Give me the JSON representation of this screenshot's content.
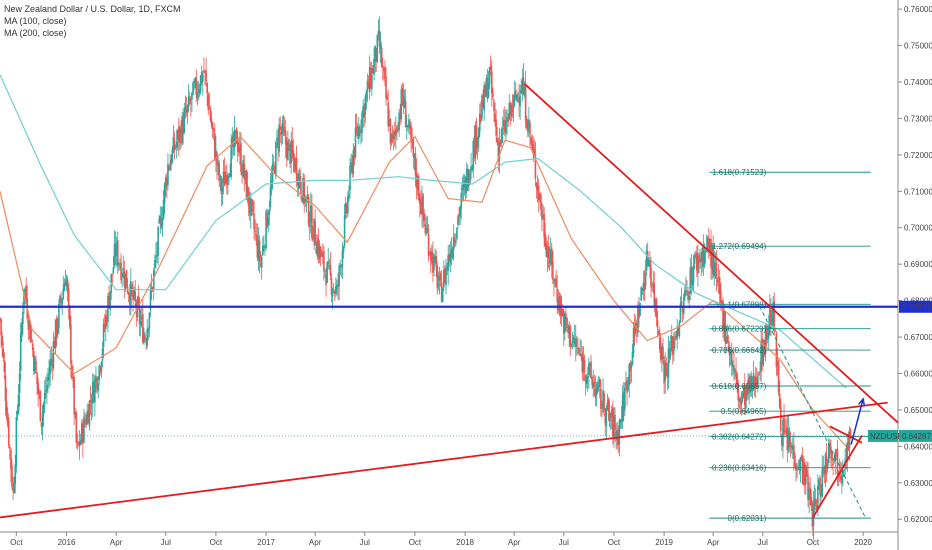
{
  "legend": {
    "title": "New Zealand Dollar / U.S. Dollar, 1D, FXCM",
    "ma100": "MA (100, close)",
    "ma200": "MA (200, close)"
  },
  "colors": {
    "up": "#26a69a",
    "down": "#ef5350",
    "ma100": "#f08a5d",
    "ma200": "#6fd0d0",
    "trend": "#e41a1c",
    "blue": "#1f2fd6",
    "fib": "#1a8f84",
    "price_badge": "#26a69a"
  },
  "chart_data": {
    "type": "candlestick",
    "title": "New Zealand Dollar / U.S. Dollar, 1D, FXCM",
    "x_range": [
      "2015-09-01",
      "2020-03-05"
    ],
    "ylim": [
      0.6165,
      0.7625
    ],
    "y_ticks": [
      0.62,
      0.63,
      0.64,
      0.65,
      0.66,
      0.67,
      0.68,
      0.69,
      0.7,
      0.71,
      0.72,
      0.73,
      0.74,
      0.75,
      0.76
    ],
    "x_ticks": [
      {
        "label": "Oct",
        "date": "2015-10-01"
      },
      {
        "label": "2016",
        "date": "2016-01-01"
      },
      {
        "label": "Apr",
        "date": "2016-04-01"
      },
      {
        "label": "Jul",
        "date": "2016-07-01"
      },
      {
        "label": "Oct",
        "date": "2016-10-01"
      },
      {
        "label": "2017",
        "date": "2017-01-01"
      },
      {
        "label": "Apr",
        "date": "2017-04-01"
      },
      {
        "label": "Jul",
        "date": "2017-07-01"
      },
      {
        "label": "Oct",
        "date": "2017-10-01"
      },
      {
        "label": "2018",
        "date": "2018-01-01"
      },
      {
        "label": "Apr",
        "date": "2018-04-01"
      },
      {
        "label": "Jul",
        "date": "2018-07-01"
      },
      {
        "label": "Oct",
        "date": "2018-10-01"
      },
      {
        "label": "2019",
        "date": "2019-01-01"
      },
      {
        "label": "Apr",
        "date": "2019-04-01"
      },
      {
        "label": "Jul",
        "date": "2019-07-01"
      },
      {
        "label": "Oct",
        "date": "2019-10-01"
      },
      {
        "label": "2020",
        "date": "2020-01-01"
      }
    ],
    "price_path": [
      [
        "2015-09-01",
        0.675
      ],
      [
        "2015-09-25",
        0.627
      ],
      [
        "2015-10-15",
        0.685
      ],
      [
        "2015-11-16",
        0.648
      ],
      [
        "2015-12-31",
        0.688
      ],
      [
        "2016-01-20",
        0.638
      ],
      [
        "2016-03-01",
        0.662
      ],
      [
        "2016-03-31",
        0.694
      ],
      [
        "2016-05-25",
        0.67
      ],
      [
        "2016-07-05",
        0.717
      ],
      [
        "2016-08-20",
        0.736
      ],
      [
        "2016-09-09",
        0.743
      ],
      [
        "2016-10-10",
        0.71
      ],
      [
        "2016-11-08",
        0.725
      ],
      [
        "2016-12-22",
        0.69
      ],
      [
        "2017-01-25",
        0.727
      ],
      [
        "2017-02-25",
        0.717
      ],
      [
        "2017-04-15",
        0.69
      ],
      [
        "2017-05-11",
        0.682
      ],
      [
        "2017-06-10",
        0.721
      ],
      [
        "2017-07-27",
        0.751
      ],
      [
        "2017-08-20",
        0.722
      ],
      [
        "2017-09-08",
        0.736
      ],
      [
        "2017-10-20",
        0.7
      ],
      [
        "2017-11-17",
        0.682
      ],
      [
        "2017-12-31",
        0.711
      ],
      [
        "2018-02-15",
        0.742
      ],
      [
        "2018-03-02",
        0.722
      ],
      [
        "2018-04-15",
        0.74
      ],
      [
        "2018-05-31",
        0.695
      ],
      [
        "2018-07-01",
        0.674
      ],
      [
        "2018-08-15",
        0.66
      ],
      [
        "2018-10-08",
        0.643
      ],
      [
        "2018-12-03",
        0.693
      ],
      [
        "2019-01-02",
        0.66
      ],
      [
        "2019-02-25",
        0.69
      ],
      [
        "2019-03-25",
        0.695
      ],
      [
        "2019-05-20",
        0.652
      ],
      [
        "2019-06-15",
        0.657
      ],
      [
        "2019-07-19",
        0.678
      ],
      [
        "2019-08-05",
        0.644
      ],
      [
        "2019-09-15",
        0.633
      ],
      [
        "2019-10-01",
        0.621
      ],
      [
        "2019-11-01",
        0.641
      ],
      [
        "2019-11-20",
        0.634
      ],
      [
        "2019-12-03",
        0.64
      ],
      [
        "2019-12-10",
        0.6429
      ]
    ],
    "ma100_path": [
      [
        "2015-09-01",
        0.71
      ],
      [
        "2015-10-30",
        0.672
      ],
      [
        "2016-01-15",
        0.66
      ],
      [
        "2016-04-01",
        0.667
      ],
      [
        "2016-06-15",
        0.688
      ],
      [
        "2016-09-15",
        0.717
      ],
      [
        "2016-11-15",
        0.725
      ],
      [
        "2017-01-15",
        0.715
      ],
      [
        "2017-04-01",
        0.706
      ],
      [
        "2017-05-30",
        0.696
      ],
      [
        "2017-08-15",
        0.718
      ],
      [
        "2017-10-01",
        0.725
      ],
      [
        "2017-12-01",
        0.708
      ],
      [
        "2018-02-01",
        0.707
      ],
      [
        "2018-03-15",
        0.724
      ],
      [
        "2018-05-01",
        0.722
      ],
      [
        "2018-07-15",
        0.697
      ],
      [
        "2018-10-01",
        0.68
      ],
      [
        "2018-12-01",
        0.669
      ],
      [
        "2019-02-01",
        0.673
      ],
      [
        "2019-04-01",
        0.68
      ],
      [
        "2019-06-01",
        0.672
      ],
      [
        "2019-08-01",
        0.664
      ],
      [
        "2019-10-01",
        0.65
      ],
      [
        "2019-12-01",
        0.64
      ]
    ],
    "ma200_path": [
      [
        "2015-09-01",
        0.742
      ],
      [
        "2015-11-15",
        0.717
      ],
      [
        "2016-01-15",
        0.698
      ],
      [
        "2016-04-01",
        0.683
      ],
      [
        "2016-07-01",
        0.683
      ],
      [
        "2016-10-01",
        0.702
      ],
      [
        "2017-01-01",
        0.712
      ],
      [
        "2017-04-01",
        0.713
      ],
      [
        "2017-06-01",
        0.713
      ],
      [
        "2017-09-01",
        0.714
      ],
      [
        "2017-11-01",
        0.713
      ],
      [
        "2018-01-15",
        0.712
      ],
      [
        "2018-03-15",
        0.718
      ],
      [
        "2018-05-15",
        0.719
      ],
      [
        "2018-08-01",
        0.71
      ],
      [
        "2018-10-15",
        0.7
      ],
      [
        "2018-12-15",
        0.69
      ],
      [
        "2019-03-01",
        0.682
      ],
      [
        "2019-05-01",
        0.678
      ],
      [
        "2019-08-01",
        0.672
      ],
      [
        "2019-10-01",
        0.664
      ],
      [
        "2019-12-01",
        0.656
      ]
    ],
    "horizontal_line": {
      "value": 0.67831,
      "label": "0.67831"
    },
    "last_price": {
      "symbol": "NZDUSD",
      "value": 0.64287,
      "label": "0.64287",
      "date": "2019-12-10"
    },
    "trendlines": [
      {
        "name": "upper-resistance",
        "from": [
          "2018-04-20",
          0.7395
        ],
        "to": [
          "2020-03-05",
          0.6465
        ]
      },
      {
        "name": "lower-support",
        "from": [
          "2015-09-01",
          0.6205
        ],
        "to": [
          "2020-02-15",
          0.652
        ]
      },
      {
        "name": "wedge-support",
        "from": [
          "2019-10-01",
          0.6205
        ],
        "to": [
          "2019-12-30",
          0.643
        ]
      },
      {
        "name": "wedge-resistance",
        "from": [
          "2019-11-01",
          0.6455
        ],
        "to": [
          "2019-12-30",
          0.641
        ]
      }
    ],
    "projection": {
      "from": [
        "2019-12-10",
        0.6405
      ],
      "to": [
        "2020-01-01",
        0.653
      ]
    },
    "dashed_trend": {
      "from": [
        "2019-06-25",
        0.6785
      ],
      "to": [
        "2020-01-05",
        0.6205
      ]
    },
    "fib_start_date": "2019-03-25",
    "fib_label_date": "2019-03-01",
    "fib_end_date": "2020-01-15",
    "fib_levels": [
      {
        "label": "1.618(0.71523)",
        "value": 0.71523
      },
      {
        "label": "1.272(0.69494)",
        "value": 0.69494
      },
      {
        "label": "1(0.67898)",
        "value": 0.67898
      },
      {
        "label": "0.886(0.67229)",
        "value": 0.67229
      },
      {
        "label": "0.786(0.66642)",
        "value": 0.66642
      },
      {
        "label": "0.618(0.65657)",
        "value": 0.65657
      },
      {
        "label": "0.5(0.64965)",
        "value": 0.64965
      },
      {
        "label": "0.382(0.64272)",
        "value": 0.64272
      },
      {
        "label": "0.236(0.63416)",
        "value": 0.63416
      },
      {
        "label": "0(0.62031)",
        "value": 0.62031
      }
    ]
  }
}
